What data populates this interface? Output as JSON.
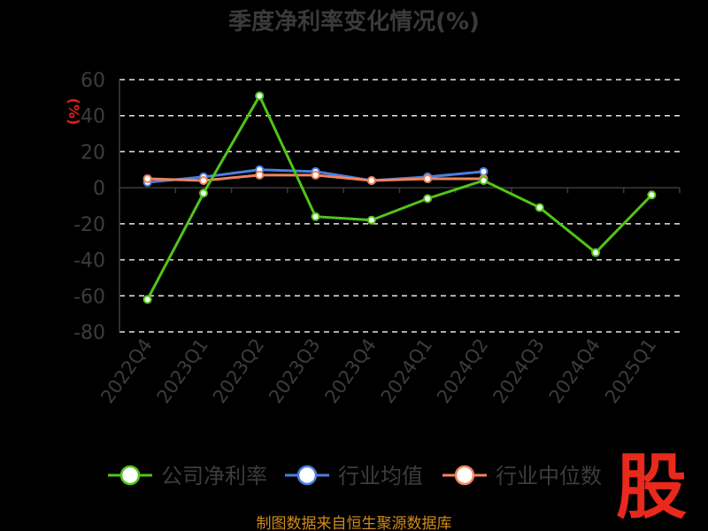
{
  "chart_data": {
    "type": "line",
    "title": "季度净利率变化情况(%)",
    "ylabel": "(%)",
    "xlabel": "",
    "ylim": [
      -80,
      60
    ],
    "yticks": [
      60,
      40,
      20,
      0,
      -20,
      -40,
      -60,
      -80
    ],
    "grid": true,
    "legend_position": "bottom",
    "categories": [
      "2022Q4",
      "2023Q1",
      "2023Q2",
      "2023Q3",
      "2023Q4",
      "2024Q1",
      "2024Q2",
      "2024Q3",
      "2024Q4",
      "2025Q1"
    ],
    "series": [
      {
        "name": "公司净利率",
        "color": "#52c41a",
        "values": [
          -62,
          -3,
          51,
          -16,
          -18,
          -6,
          4,
          -11,
          -36,
          -4
        ]
      },
      {
        "name": "行业均值",
        "color": "#4a7fe0",
        "values": [
          3,
          6,
          10,
          9,
          4,
          6,
          9,
          null,
          null,
          null
        ]
      },
      {
        "name": "行业中位数",
        "color": "#f0845a",
        "values": [
          5,
          4,
          7,
          7,
          4,
          5,
          5,
          null,
          null,
          null
        ]
      }
    ]
  },
  "source_text": "制图数据来自恒生聚源数据库",
  "logo_text": "股"
}
